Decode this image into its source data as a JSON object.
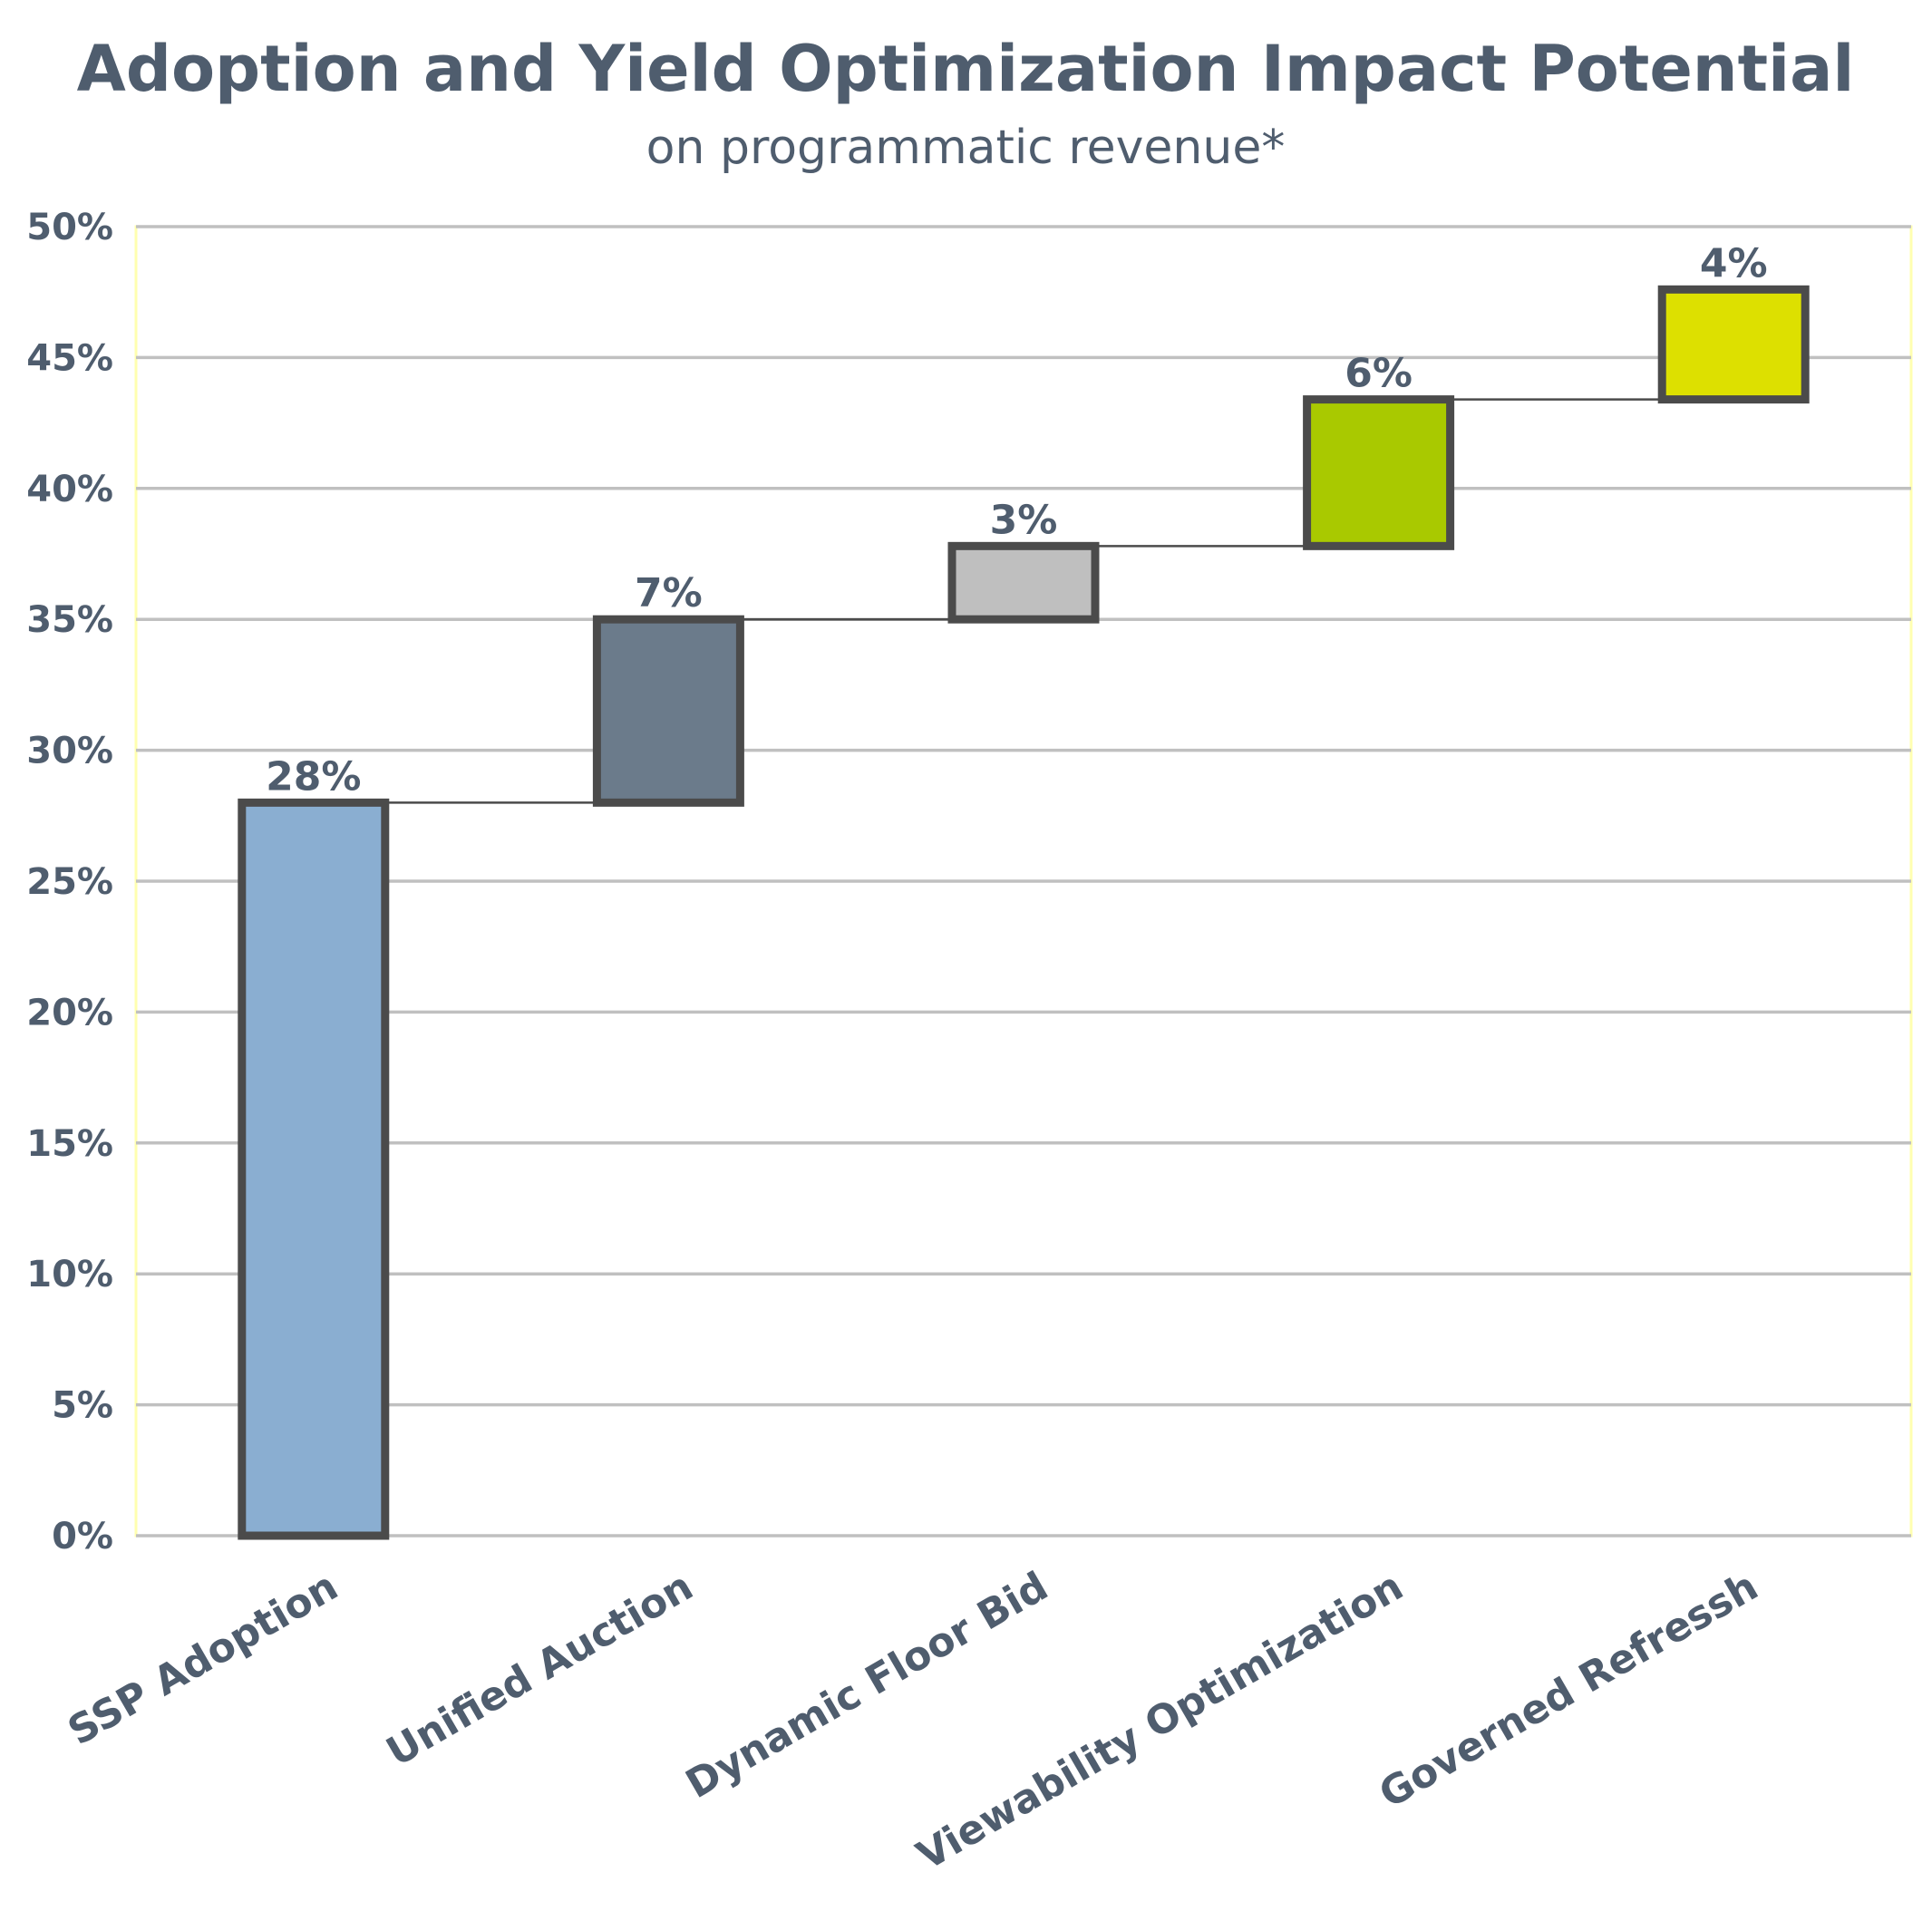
{
  "chart_data": {
    "type": "bar",
    "subtype": "waterfall",
    "title": "Adoption and Yield Optimization Impact Potential",
    "subtitle": "on programmatic revenue*",
    "xlabel": "",
    "ylabel": "",
    "ylim": [
      0,
      50
    ],
    "ytick_step": 5,
    "ytick_labels": [
      "0%",
      "5%",
      "10%",
      "15%",
      "20%",
      "25%",
      "30%",
      "35%",
      "40%",
      "45%",
      "50%"
    ],
    "grid": true,
    "legend": "none",
    "categories": [
      "SSP Adoption",
      "Unified Auction",
      "Dynamic Floor Bid",
      "Viewability Optimization",
      "Governed Refressh"
    ],
    "values": [
      28,
      7,
      3,
      6,
      4
    ],
    "bar_starts": [
      0,
      28,
      35,
      37.8,
      43.4
    ],
    "bar_ends": [
      28,
      35,
      37.8,
      43.4,
      47.6
    ],
    "data_labels": [
      "28%",
      "7%",
      "3%",
      "6%",
      "4%"
    ],
    "colors": [
      "#8aaed1",
      "#6b7b8b",
      "#bfbfbf",
      "#a9c900",
      "#dde000"
    ],
    "bar_outline_color": "#4b4b4b",
    "grid_color": "#c0c0c0",
    "text_color": "#4f5d6e"
  }
}
